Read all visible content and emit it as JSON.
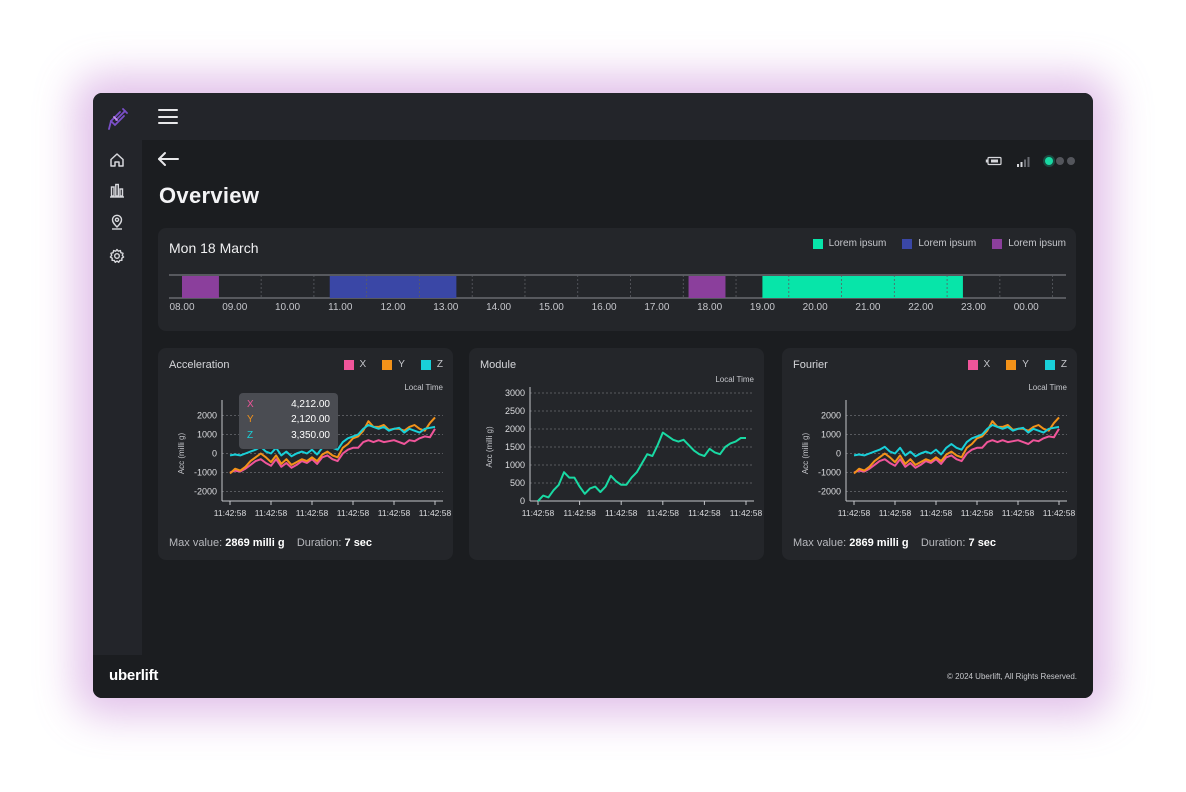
{
  "app": {
    "brand": "uberlift",
    "copyright": "© 2024 Uberlift, All Rights Reserved."
  },
  "sidebar": {
    "logo_icon": "syringe-logo-icon",
    "items": [
      {
        "icon": "home-icon"
      },
      {
        "icon": "bar-chart-icon"
      },
      {
        "icon": "location-pin-icon"
      },
      {
        "icon": "gear-icon"
      }
    ]
  },
  "header": {
    "menu_icon": "hamburger-icon",
    "back_icon": "back-arrow-icon",
    "title": "Overview",
    "status": {
      "battery_icon": "battery-icon",
      "signal_icon": "signal-icon",
      "connection_dots": 3,
      "active_dot": 1
    }
  },
  "colors": {
    "x": "#f0559a",
    "y": "#f39219",
    "z": "#19cfd8",
    "module": "#19d9a3",
    "segment_purple": "#8b3f9c",
    "segment_blue": "#3a47a6",
    "segment_green": "#07e5a9"
  },
  "timeline": {
    "date": "Mon 18 March",
    "legend": [
      {
        "label": "Lorem ipsum",
        "color": "#07e5a9"
      },
      {
        "label": "Lorem ipsum",
        "color": "#3a47a6"
      },
      {
        "label": "Lorem ipsum",
        "color": "#8b3f9c"
      }
    ],
    "hours": [
      "08.00",
      "09.00",
      "10.00",
      "11.00",
      "12.00",
      "13.00",
      "14.00",
      "15.00",
      "16.00",
      "17.00",
      "18.00",
      "19.00",
      "20.00",
      "21.00",
      "22.00",
      "23.00",
      "00.00"
    ],
    "segments": [
      {
        "start": 8.0,
        "end": 8.7,
        "color": "#8b3f9c"
      },
      {
        "start": 10.8,
        "end": 13.2,
        "color": "#3a47a6"
      },
      {
        "start": 17.6,
        "end": 18.3,
        "color": "#8b3f9c"
      },
      {
        "start": 19.0,
        "end": 22.8,
        "color": "#07e5a9"
      }
    ]
  },
  "charts": {
    "acceleration": {
      "title": "Acceleration",
      "legend": [
        "X",
        "Y",
        "Z"
      ],
      "time_label": "Local Time",
      "ylabel": "Acc (milli g)",
      "yticks": [
        "2000",
        "1000",
        "0",
        "-1000",
        "-2000"
      ],
      "xticks": [
        "11:42:58",
        "11:42:58",
        "11:42:58",
        "11:42:58",
        "11:42:58",
        "11:42:58"
      ],
      "tooltip": [
        {
          "key": "X",
          "value": "4,212.00"
        },
        {
          "key": "Y",
          "value": "2,120.00"
        },
        {
          "key": "Z",
          "value": "3,350.00"
        }
      ],
      "footer": {
        "max_label": "Max value:",
        "max_value": "2869 milli g",
        "duration_label": "Duration:",
        "duration_value": "7 sec"
      }
    },
    "module": {
      "title": "Module",
      "time_label": "Local Time",
      "ylabel": "Acc (milli g)",
      "yticks": [
        "3000",
        "2500",
        "2000",
        "1500",
        "1000",
        "500",
        "0"
      ],
      "xticks": [
        "11:42:58",
        "11:42:58",
        "11:42:58",
        "11:42:58",
        "11:42:58",
        "11:42:58"
      ]
    },
    "fourier": {
      "title": "Fourier",
      "legend": [
        "X",
        "Y",
        "Z"
      ],
      "time_label": "Local Time",
      "ylabel": "Acc (milli g)",
      "yticks": [
        "2000",
        "1000",
        "0",
        "-1000",
        "-2000"
      ],
      "xticks": [
        "11:42:58",
        "11:42:58",
        "11:42:58",
        "11:42:58",
        "11:42:58",
        "11:42:58"
      ],
      "footer": {
        "max_label": "Max value:",
        "max_value": "2869 milli g",
        "duration_label": "Duration:",
        "duration_value": "7 sec"
      }
    }
  },
  "chart_data": [
    {
      "type": "line",
      "title": "Acceleration",
      "ylabel": "Acc (milli g)",
      "ylim": [
        -2500,
        2500
      ],
      "x": [
        0,
        1,
        2,
        3,
        4,
        5,
        6,
        7,
        8,
        9,
        10,
        11,
        12,
        13,
        14,
        15,
        16,
        17,
        18,
        19,
        20,
        21,
        22,
        23,
        24,
        25,
        26,
        27,
        28,
        29,
        30,
        31,
        32,
        33,
        34,
        35,
        36,
        37,
        38,
        39,
        40
      ],
      "series": [
        {
          "name": "X",
          "values": [
            -1000,
            -900,
            -950,
            -800,
            -600,
            -400,
            -300,
            -500,
            -650,
            -300,
            -700,
            -500,
            -750,
            -600,
            -400,
            -500,
            -300,
            -550,
            -200,
            -100,
            -300,
            -400,
            0,
            200,
            300,
            300,
            600,
            700,
            600,
            700,
            600,
            650,
            700,
            600,
            500,
            700,
            650,
            800,
            900,
            850,
            1300
          ]
        },
        {
          "name": "Y",
          "values": [
            -1050,
            -800,
            -900,
            -700,
            -400,
            -200,
            0,
            -200,
            -450,
            -100,
            -550,
            -300,
            -600,
            -450,
            -300,
            -400,
            -200,
            -400,
            -50,
            100,
            -100,
            -200,
            300,
            500,
            800,
            900,
            1200,
            1700,
            1400,
            1400,
            1500,
            1250,
            1300,
            1300,
            1200,
            1400,
            1500,
            1300,
            1200,
            1600,
            1900
          ]
        },
        {
          "name": "Z",
          "values": [
            -100,
            -50,
            -100,
            0,
            100,
            200,
            350,
            100,
            0,
            300,
            -100,
            100,
            -150,
            0,
            100,
            0,
            200,
            -50,
            300,
            500,
            300,
            200,
            600,
            800,
            900,
            1000,
            1300,
            1500,
            1400,
            1300,
            1400,
            1200,
            1300,
            1350,
            1100,
            1300,
            1200,
            1100,
            1300,
            1350,
            1400
          ]
        }
      ]
    },
    {
      "type": "line",
      "title": "Module",
      "ylabel": "Acc (milli g)",
      "ylim": [
        0,
        3000
      ],
      "x": [
        0,
        1,
        2,
        3,
        4,
        5,
        6,
        7,
        8,
        9,
        10,
        11,
        12,
        13,
        14,
        15,
        16,
        17,
        18,
        19,
        20,
        21,
        22,
        23,
        24,
        25,
        26,
        27,
        28,
        29,
        30,
        31,
        32,
        33,
        34,
        35,
        36,
        37,
        38,
        39,
        40
      ],
      "series": [
        {
          "name": "",
          "values": [
            0,
            150,
            100,
            300,
            450,
            800,
            650,
            650,
            400,
            200,
            350,
            400,
            250,
            400,
            700,
            550,
            450,
            450,
            650,
            800,
            1050,
            1300,
            1250,
            1550,
            1900,
            1800,
            1700,
            1650,
            1700,
            1550,
            1400,
            1300,
            1250,
            1450,
            1350,
            1300,
            1500,
            1600,
            1650,
            1750,
            1750
          ]
        }
      ]
    },
    {
      "type": "line",
      "title": "Fourier",
      "ylabel": "Acc (milli g)",
      "ylim": [
        -2500,
        2500
      ],
      "x": [
        0,
        1,
        2,
        3,
        4,
        5,
        6,
        7,
        8,
        9,
        10,
        11,
        12,
        13,
        14,
        15,
        16,
        17,
        18,
        19,
        20,
        21,
        22,
        23,
        24,
        25,
        26,
        27,
        28,
        29,
        30,
        31,
        32,
        33,
        34,
        35,
        36,
        37,
        38,
        39,
        40
      ],
      "series": [
        {
          "name": "X",
          "values": [
            -1000,
            -900,
            -950,
            -800,
            -600,
            -400,
            -300,
            -500,
            -650,
            -300,
            -700,
            -500,
            -750,
            -600,
            -400,
            -500,
            -300,
            -550,
            -200,
            -100,
            -300,
            -400,
            0,
            200,
            300,
            300,
            600,
            700,
            600,
            700,
            600,
            650,
            700,
            600,
            500,
            700,
            650,
            800,
            900,
            850,
            1300
          ]
        },
        {
          "name": "Y",
          "values": [
            -1050,
            -800,
            -900,
            -700,
            -400,
            -200,
            0,
            -200,
            -450,
            -100,
            -550,
            -300,
            -600,
            -450,
            -300,
            -400,
            -200,
            -400,
            -50,
            100,
            -100,
            -200,
            300,
            500,
            800,
            900,
            1200,
            1700,
            1400,
            1400,
            1500,
            1250,
            1300,
            1300,
            1200,
            1400,
            1500,
            1300,
            1200,
            1600,
            1900
          ]
        },
        {
          "name": "Z",
          "values": [
            -100,
            -50,
            -100,
            0,
            100,
            200,
            350,
            100,
            0,
            300,
            -100,
            100,
            -150,
            0,
            100,
            0,
            200,
            -50,
            300,
            500,
            300,
            200,
            600,
            800,
            900,
            1000,
            1300,
            1500,
            1400,
            1300,
            1400,
            1200,
            1300,
            1350,
            1100,
            1300,
            1200,
            1100,
            1300,
            1350,
            1400
          ]
        }
      ]
    }
  ]
}
